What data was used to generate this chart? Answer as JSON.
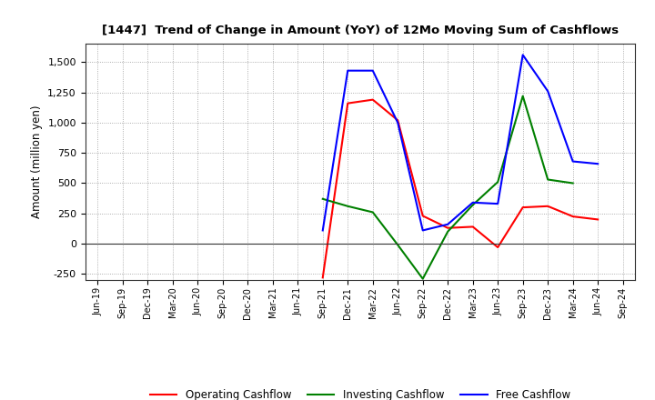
{
  "title": "[1447]  Trend of Change in Amount (YoY) of 12Mo Moving Sum of Cashflows",
  "ylabel": "Amount (million yen)",
  "x_labels": [
    "Jun-19",
    "Sep-19",
    "Dec-19",
    "Mar-20",
    "Jun-20",
    "Sep-20",
    "Dec-20",
    "Mar-21",
    "Jun-21",
    "Sep-21",
    "Dec-21",
    "Mar-22",
    "Jun-22",
    "Sep-22",
    "Dec-22",
    "Mar-23",
    "Jun-23",
    "Sep-23",
    "Dec-23",
    "Mar-24",
    "Jun-24",
    "Sep-24"
  ],
  "operating": [
    null,
    null,
    null,
    null,
    null,
    null,
    null,
    null,
    null,
    -280,
    1160,
    1190,
    1020,
    230,
    130,
    140,
    -30,
    300,
    310,
    225,
    200,
    null
  ],
  "investing": [
    null,
    null,
    null,
    null,
    null,
    null,
    null,
    null,
    null,
    370,
    310,
    260,
    -10,
    -290,
    100,
    320,
    510,
    1220,
    530,
    500,
    null,
    null
  ],
  "free": [
    null,
    null,
    null,
    null,
    null,
    null,
    null,
    null,
    null,
    110,
    1430,
    1430,
    1000,
    110,
    160,
    340,
    330,
    1560,
    1260,
    680,
    660,
    null
  ],
  "ylim": [
    -300,
    1650
  ],
  "yticks": [
    -250,
    0,
    250,
    500,
    750,
    1000,
    1250,
    1500
  ],
  "operating_color": "#ff0000",
  "investing_color": "#008000",
  "free_color": "#0000ff",
  "legend_labels": [
    "Operating Cashflow",
    "Investing Cashflow",
    "Free Cashflow"
  ],
  "background_color": "#ffffff",
  "grid_color": "#999999"
}
